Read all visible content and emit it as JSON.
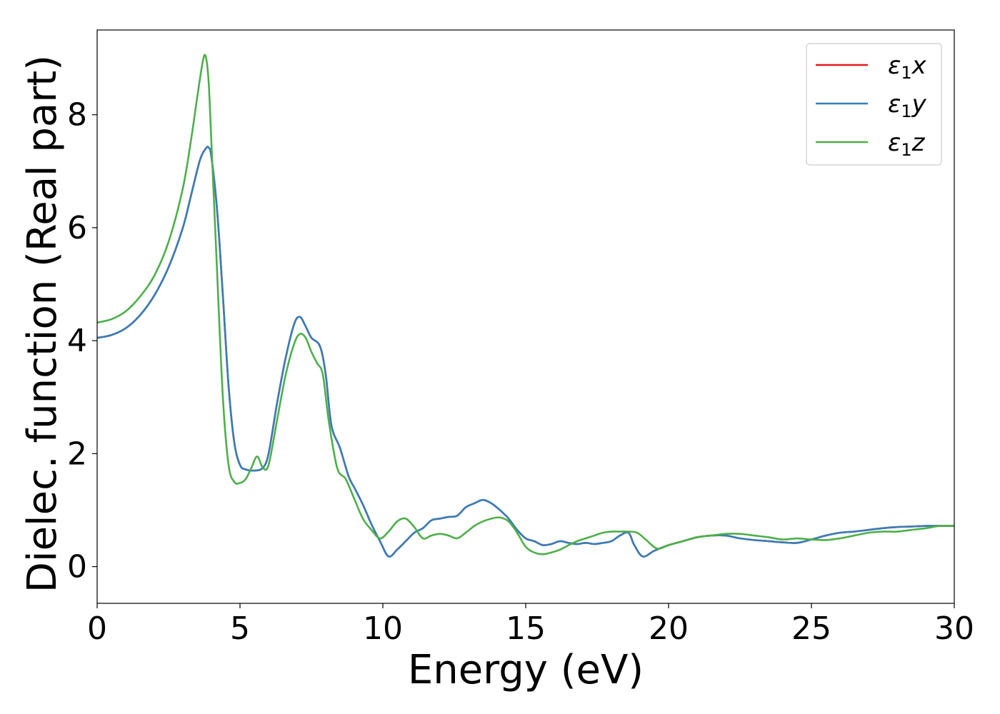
{
  "chart_data": {
    "type": "line",
    "xlabel": "Energy (eV)",
    "ylabel": "Dielec. function (Real part)",
    "xlim": [
      0,
      30
    ],
    "ylim": [
      -0.65,
      9.5
    ],
    "xticks": [
      0,
      5,
      10,
      15,
      20,
      25,
      30
    ],
    "yticks": [
      0,
      2,
      4,
      6,
      8
    ],
    "grid": false,
    "legend_position": "top-right",
    "series": [
      {
        "name": "ε1x",
        "color": "#e41a1c",
        "x": [
          0,
          0.5,
          1,
          1.5,
          2,
          2.5,
          3,
          3.3,
          3.6,
          3.8,
          3.9,
          4.0,
          4.2,
          4.4,
          4.6,
          4.8,
          5.0,
          5.2,
          5.5,
          5.8,
          6.0,
          6.3,
          6.6,
          6.9,
          7.1,
          7.3,
          7.5,
          7.8,
          8.0,
          8.2,
          8.5,
          8.8,
          9.0,
          9.3,
          9.6,
          9.9,
          10.2,
          10.5,
          10.8,
          11.1,
          11.4,
          11.7,
          12.0,
          12.3,
          12.6,
          12.9,
          13.2,
          13.5,
          13.8,
          14.1,
          14.4,
          14.7,
          15.0,
          15.3,
          15.6,
          15.9,
          16.2,
          16.5,
          16.8,
          17.1,
          17.4,
          17.7,
          18.0,
          18.3,
          18.6,
          18.8,
          19.1,
          19.5,
          20.0,
          20.5,
          21.0,
          21.5,
          22.0,
          22.5,
          23.0,
          23.5,
          24.0,
          24.5,
          25.0,
          25.5,
          26.0,
          26.5,
          27.0,
          27.5,
          28.0,
          28.5,
          29.0,
          29.5,
          30.0
        ],
        "values": [
          4.05,
          4.1,
          4.22,
          4.45,
          4.8,
          5.3,
          6.0,
          6.6,
          7.2,
          7.4,
          7.42,
          7.25,
          6.3,
          4.8,
          3.2,
          2.2,
          1.8,
          1.72,
          1.7,
          1.75,
          2.0,
          2.9,
          3.7,
          4.3,
          4.42,
          4.25,
          4.05,
          3.9,
          3.4,
          2.5,
          2.1,
          1.6,
          1.4,
          1.1,
          0.75,
          0.45,
          0.18,
          0.3,
          0.45,
          0.6,
          0.68,
          0.82,
          0.85,
          0.88,
          0.9,
          1.05,
          1.12,
          1.18,
          1.12,
          1.0,
          0.85,
          0.65,
          0.5,
          0.45,
          0.38,
          0.4,
          0.45,
          0.42,
          0.4,
          0.42,
          0.4,
          0.42,
          0.45,
          0.55,
          0.6,
          0.38,
          0.18,
          0.28,
          0.38,
          0.45,
          0.52,
          0.55,
          0.55,
          0.5,
          0.47,
          0.45,
          0.43,
          0.42,
          0.48,
          0.55,
          0.6,
          0.62,
          0.65,
          0.68,
          0.7,
          0.71,
          0.72,
          0.72,
          0.72
        ]
      },
      {
        "name": "ε1y",
        "color": "#377eb8",
        "x": [
          0,
          0.5,
          1,
          1.5,
          2,
          2.5,
          3,
          3.3,
          3.6,
          3.8,
          3.9,
          4.0,
          4.2,
          4.4,
          4.6,
          4.8,
          5.0,
          5.2,
          5.5,
          5.8,
          6.0,
          6.3,
          6.6,
          6.9,
          7.1,
          7.3,
          7.5,
          7.8,
          8.0,
          8.2,
          8.5,
          8.8,
          9.0,
          9.3,
          9.6,
          9.9,
          10.2,
          10.5,
          10.8,
          11.1,
          11.4,
          11.7,
          12.0,
          12.3,
          12.6,
          12.9,
          13.2,
          13.5,
          13.8,
          14.1,
          14.4,
          14.7,
          15.0,
          15.3,
          15.6,
          15.9,
          16.2,
          16.5,
          16.8,
          17.1,
          17.4,
          17.7,
          18.0,
          18.3,
          18.6,
          18.8,
          19.1,
          19.5,
          20.0,
          20.5,
          21.0,
          21.5,
          22.0,
          22.5,
          23.0,
          23.5,
          24.0,
          24.5,
          25.0,
          25.5,
          26.0,
          26.5,
          27.0,
          27.5,
          28.0,
          28.5,
          29.0,
          29.5,
          30.0
        ],
        "values": [
          4.05,
          4.1,
          4.22,
          4.45,
          4.8,
          5.3,
          6.0,
          6.6,
          7.2,
          7.4,
          7.42,
          7.25,
          6.3,
          4.8,
          3.2,
          2.2,
          1.8,
          1.72,
          1.7,
          1.75,
          2.0,
          2.9,
          3.7,
          4.3,
          4.42,
          4.25,
          4.05,
          3.9,
          3.4,
          2.5,
          2.1,
          1.6,
          1.4,
          1.1,
          0.75,
          0.45,
          0.18,
          0.3,
          0.45,
          0.6,
          0.68,
          0.82,
          0.85,
          0.88,
          0.9,
          1.05,
          1.12,
          1.18,
          1.12,
          1.0,
          0.85,
          0.65,
          0.5,
          0.45,
          0.38,
          0.4,
          0.45,
          0.42,
          0.4,
          0.42,
          0.4,
          0.42,
          0.45,
          0.55,
          0.6,
          0.38,
          0.18,
          0.28,
          0.38,
          0.45,
          0.52,
          0.55,
          0.55,
          0.5,
          0.47,
          0.45,
          0.43,
          0.42,
          0.48,
          0.55,
          0.6,
          0.62,
          0.65,
          0.68,
          0.7,
          0.71,
          0.72,
          0.72,
          0.72
        ]
      },
      {
        "name": "ε1z",
        "color": "#4daf4a",
        "x": [
          0,
          0.5,
          1,
          1.5,
          2,
          2.5,
          3,
          3.3,
          3.5,
          3.7,
          3.8,
          3.9,
          4.0,
          4.2,
          4.4,
          4.6,
          4.8,
          5.0,
          5.2,
          5.4,
          5.6,
          5.8,
          6.0,
          6.3,
          6.6,
          6.9,
          7.1,
          7.3,
          7.5,
          7.7,
          7.9,
          8.1,
          8.4,
          8.7,
          9.0,
          9.3,
          9.6,
          9.9,
          10.2,
          10.5,
          10.8,
          11.1,
          11.4,
          11.7,
          12.0,
          12.3,
          12.6,
          12.9,
          13.2,
          13.5,
          13.8,
          14.1,
          14.4,
          14.7,
          15.0,
          15.3,
          15.6,
          15.9,
          16.2,
          16.5,
          16.8,
          17.1,
          17.4,
          17.7,
          18.0,
          18.3,
          18.6,
          18.9,
          19.2,
          19.6,
          20.0,
          20.5,
          21.0,
          21.5,
          22.0,
          22.5,
          23.0,
          23.5,
          24.0,
          24.5,
          25.0,
          25.5,
          26.0,
          26.5,
          27.0,
          27.5,
          28.0,
          28.5,
          29.0,
          29.5,
          30.0
        ],
        "values": [
          4.32,
          4.38,
          4.52,
          4.78,
          5.15,
          5.75,
          6.7,
          7.6,
          8.3,
          8.95,
          9.03,
          8.6,
          7.5,
          5.2,
          3.0,
          1.8,
          1.5,
          1.48,
          1.55,
          1.75,
          1.95,
          1.75,
          1.8,
          2.6,
          3.4,
          3.95,
          4.12,
          4.05,
          3.8,
          3.6,
          3.4,
          2.6,
          1.75,
          1.55,
          1.2,
          0.85,
          0.65,
          0.5,
          0.62,
          0.8,
          0.85,
          0.7,
          0.5,
          0.55,
          0.58,
          0.55,
          0.5,
          0.6,
          0.72,
          0.8,
          0.85,
          0.87,
          0.8,
          0.6,
          0.35,
          0.25,
          0.22,
          0.25,
          0.3,
          0.38,
          0.45,
          0.5,
          0.55,
          0.6,
          0.62,
          0.62,
          0.62,
          0.6,
          0.48,
          0.32,
          0.38,
          0.45,
          0.52,
          0.55,
          0.58,
          0.58,
          0.55,
          0.52,
          0.48,
          0.5,
          0.48,
          0.47,
          0.5,
          0.55,
          0.6,
          0.62,
          0.62,
          0.65,
          0.68,
          0.72,
          0.72
        ]
      }
    ]
  }
}
